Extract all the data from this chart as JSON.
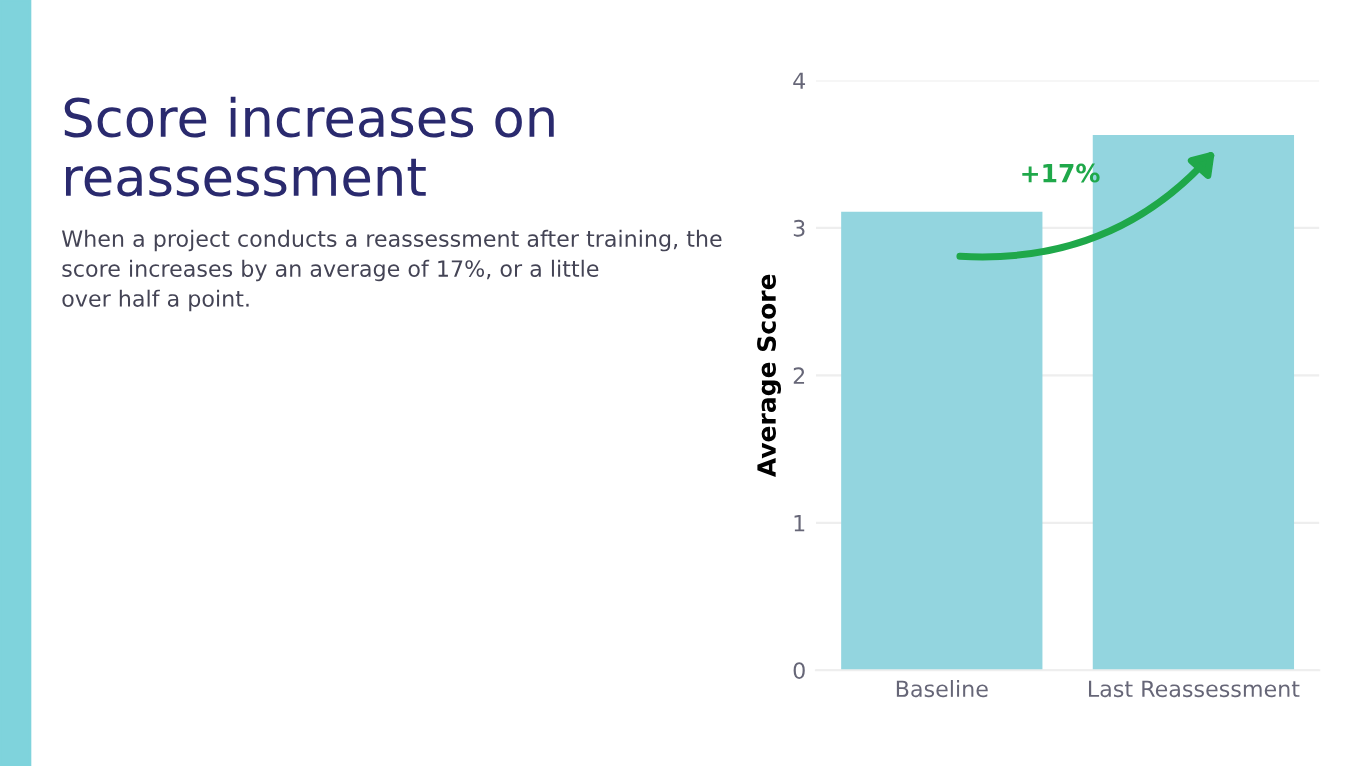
{
  "chart_data": {
    "type": "bar",
    "title": "Score increases on\nreassessment",
    "subtitle": "When a project conducts a reassessment after training, the\nscore increases by an average of 17%, or a little\nover half a point.",
    "ylabel": "Average Score",
    "categories": [
      "Baseline",
      "Last Reassessment"
    ],
    "values": [
      3.11,
      3.63
    ],
    "color": "#93d5df",
    "ylim": [
      0,
      4
    ],
    "yticks": [
      0,
      1,
      2,
      3,
      4
    ],
    "grid": "y",
    "annotations": [
      "+17%"
    ]
  }
}
